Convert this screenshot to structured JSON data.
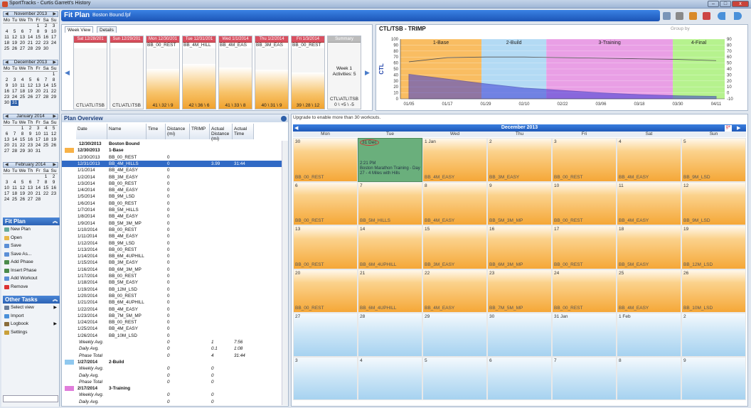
{
  "window": {
    "title": "SportTracks - Curtis Garrett's History",
    "min": "–",
    "max": "□",
    "close": "x"
  },
  "calendars": [
    {
      "month": "November 2013",
      "days": [
        "Mo",
        "Tu",
        "We",
        "Th",
        "Fr",
        "Sa",
        "Su"
      ],
      "dates": [
        "",
        "",
        "",
        "",
        "1",
        "2",
        "3",
        "4",
        "5",
        "6",
        "7",
        "8",
        "9",
        "10",
        "11",
        "12",
        "13",
        "14",
        "15",
        "16",
        "17",
        "18",
        "19",
        "20",
        "21",
        "22",
        "23",
        "24",
        "25",
        "26",
        "27",
        "28",
        "29",
        "30",
        ""
      ]
    },
    {
      "month": "December 2013",
      "days": [
        "Mo",
        "Tu",
        "We",
        "Th",
        "Fr",
        "Sa",
        "Su"
      ],
      "dates": [
        "",
        "",
        "",
        "",
        "",
        "",
        "1",
        "2",
        "3",
        "4",
        "5",
        "6",
        "7",
        "8",
        "9",
        "10",
        "11",
        "12",
        "13",
        "14",
        "15",
        "16",
        "17",
        "18",
        "19",
        "20",
        "21",
        "22",
        "23",
        "24",
        "25",
        "26",
        "27",
        "28",
        "29",
        "30",
        "31"
      ]
    },
    {
      "month": "January 2014",
      "days": [
        "Mo",
        "Tu",
        "We",
        "Th",
        "Fr",
        "Sa",
        "Su"
      ],
      "dates": [
        "",
        "",
        "1",
        "2",
        "3",
        "4",
        "5",
        "6",
        "7",
        "8",
        "9",
        "10",
        "11",
        "12",
        "13",
        "14",
        "15",
        "16",
        "17",
        "18",
        "19",
        "20",
        "21",
        "22",
        "23",
        "24",
        "25",
        "26",
        "27",
        "28",
        "29",
        "30",
        "31",
        "",
        ""
      ]
    },
    {
      "month": "February 2014",
      "days": [
        "Mo",
        "Tu",
        "We",
        "Th",
        "Fr",
        "Sa",
        "Su"
      ],
      "dates": [
        "",
        "",
        "",
        "",
        "",
        "1",
        "2",
        "3",
        "4",
        "5",
        "6",
        "7",
        "8",
        "9",
        "10",
        "11",
        "12",
        "13",
        "14",
        "15",
        "16",
        "17",
        "18",
        "19",
        "20",
        "21",
        "22",
        "23",
        "24",
        "25",
        "26",
        "27",
        "28",
        "",
        ""
      ]
    }
  ],
  "fitplan_tasks": {
    "title": "Fit Plan",
    "items": [
      "New Plan",
      "Open",
      "Save",
      "Save As...",
      "Add Phase",
      "Insert Phase",
      "Add Workout",
      "Remove"
    ]
  },
  "other_tasks": {
    "title": "Other Tasks",
    "items": [
      "Select view",
      "Import",
      "Logbook",
      "Settings"
    ]
  },
  "header": {
    "title": "Fit Plan",
    "file": "Boston Bound.fpf",
    "groupby": "Group by"
  },
  "weekview": {
    "tabs": [
      "Week View",
      "Details"
    ],
    "days": [
      {
        "header": "Sat 12/28/201",
        "workout": "",
        "load": "CTL\\ATL\\TSB",
        "fill": 0
      },
      {
        "header": "Sun 12/29/201",
        "workout": "",
        "load": "CTL\\ATL\\TSB",
        "fill": 0
      },
      {
        "header": "Mon 12/30/201",
        "workout": "BB_00_REST",
        "load": "41 \\ 32 \\ 9",
        "fill": 0.55
      },
      {
        "header": "Tue 12/31/201",
        "workout": "BB_4M_HILL",
        "load": "42 \\ 36 \\ 6",
        "fill": 0.62
      },
      {
        "header": "Wed 1/1/2014",
        "workout": "BB_4M_EAS",
        "load": "41 \\ 33 \\ 8",
        "fill": 0.57
      },
      {
        "header": "Thu 1/2/2014",
        "workout": "BB_3M_EAS",
        "load": "40 \\ 31 \\ 9",
        "fill": 0.54
      },
      {
        "header": "Fri 1/3/2014",
        "workout": "BB_00_REST",
        "load": "39 \\ 28 \\ 12",
        "fill": 0.5
      }
    ],
    "summary": {
      "header": "Summary",
      "week": "Week 1",
      "activities": "Activities: 5",
      "load": "CTL\\ATL\\TSB",
      "values": "0 \\ +5 \\ -5"
    }
  },
  "ctl_chart": {
    "title": "CTL/TSB - TRIMP"
  },
  "chart_data": {
    "type": "area",
    "title": "CTL/TSB - TRIMP",
    "ylabel": "CTL",
    "x": [
      "01/05",
      "01/17",
      "01/29",
      "02/10",
      "02/22",
      "03/06",
      "03/18",
      "03/30",
      "04/11"
    ],
    "ylim": [
      0,
      100
    ],
    "yticks": [
      0,
      10,
      20,
      30,
      40,
      50,
      60,
      70,
      80,
      90,
      100
    ],
    "y2ticks": [
      -10,
      0,
      10,
      20,
      30,
      40,
      50,
      60,
      70,
      80,
      90
    ],
    "phases": [
      {
        "name": "1-Base",
        "color": "#f8b247"
      },
      {
        "name": "2-Build",
        "color": "#a6d4f2"
      },
      {
        "name": "3-Training",
        "color": "#e58ee0"
      },
      {
        "name": "4-Final",
        "color": "#a9f07a"
      }
    ],
    "series": [
      {
        "name": "CTL",
        "values": [
          41,
          33,
          25,
          18,
          14,
          10,
          7,
          5,
          4
        ]
      },
      {
        "name": "TSB",
        "values": [
          62,
          69,
          70,
          70,
          69,
          68,
          67,
          66,
          64
        ]
      }
    ]
  },
  "overview": {
    "title": "Plan Overview",
    "columns": [
      "Date",
      "Name",
      "Time",
      "Distance (mi)",
      "TRIMP",
      "Actual Distance (mi)",
      "Actual Time"
    ],
    "plan_row": {
      "date": "12/30/2013",
      "name": "Boston Bound"
    },
    "rows": [
      {
        "d": "12/30/2013",
        "n": "1-Base",
        "t": "",
        "dist": "",
        "tr": "",
        "ad": "",
        "at": "",
        "cls": "ph",
        "sw": "#f8b247"
      },
      {
        "d": "12/30/2013",
        "n": "BB_00_REST",
        "t": "",
        "dist": "0",
        "tr": "",
        "ad": "",
        "at": "",
        "cls": ""
      },
      {
        "d": "12/31/2013",
        "n": "BB_4M_HILLS",
        "t": "",
        "dist": "0",
        "tr": "",
        "ad": "3.99",
        "at": "31:44",
        "cls": "sel"
      },
      {
        "d": "1/1/2014",
        "n": "BB_4M_EASY",
        "t": "",
        "dist": "0",
        "tr": "",
        "ad": "",
        "at": "",
        "cls": ""
      },
      {
        "d": "1/2/2014",
        "n": "BB_3M_EASY",
        "t": "",
        "dist": "0",
        "tr": "",
        "ad": "",
        "at": "",
        "cls": ""
      },
      {
        "d": "1/3/2014",
        "n": "BB_00_REST",
        "t": "",
        "dist": "0",
        "tr": "",
        "ad": "",
        "at": "",
        "cls": ""
      },
      {
        "d": "1/4/2014",
        "n": "BB_4M_EASY",
        "t": "",
        "dist": "0",
        "tr": "",
        "ad": "",
        "at": "",
        "cls": ""
      },
      {
        "d": "1/5/2014",
        "n": "BB_9M_LSD",
        "t": "",
        "dist": "0",
        "tr": "",
        "ad": "",
        "at": "",
        "cls": ""
      },
      {
        "d": "1/6/2014",
        "n": "BB_00_REST",
        "t": "",
        "dist": "0",
        "tr": "",
        "ad": "",
        "at": "",
        "cls": ""
      },
      {
        "d": "1/7/2014",
        "n": "BB_5M_HILLS",
        "t": "",
        "dist": "0",
        "tr": "",
        "ad": "",
        "at": "",
        "cls": ""
      },
      {
        "d": "1/8/2014",
        "n": "BB_4M_EASY",
        "t": "",
        "dist": "0",
        "tr": "",
        "ad": "",
        "at": "",
        "cls": ""
      },
      {
        "d": "1/9/2014",
        "n": "BB_5M_3M_MP",
        "t": "",
        "dist": "0",
        "tr": "",
        "ad": "",
        "at": "",
        "cls": ""
      },
      {
        "d": "1/10/2014",
        "n": "BB_00_REST",
        "t": "",
        "dist": "0",
        "tr": "",
        "ad": "",
        "at": "",
        "cls": ""
      },
      {
        "d": "1/11/2014",
        "n": "BB_4M_EASY",
        "t": "",
        "dist": "0",
        "tr": "",
        "ad": "",
        "at": "",
        "cls": ""
      },
      {
        "d": "1/12/2014",
        "n": "BB_9M_LSD",
        "t": "",
        "dist": "0",
        "tr": "",
        "ad": "",
        "at": "",
        "cls": ""
      },
      {
        "d": "1/13/2014",
        "n": "BB_00_REST",
        "t": "",
        "dist": "0",
        "tr": "",
        "ad": "",
        "at": "",
        "cls": ""
      },
      {
        "d": "1/14/2014",
        "n": "BB_6M_4UPHILL",
        "t": "",
        "dist": "0",
        "tr": "",
        "ad": "",
        "at": "",
        "cls": ""
      },
      {
        "d": "1/15/2014",
        "n": "BB_3M_EASY",
        "t": "",
        "dist": "0",
        "tr": "",
        "ad": "",
        "at": "",
        "cls": ""
      },
      {
        "d": "1/16/2014",
        "n": "BB_6M_3M_MP",
        "t": "",
        "dist": "0",
        "tr": "",
        "ad": "",
        "at": "",
        "cls": ""
      },
      {
        "d": "1/17/2014",
        "n": "BB_00_REST",
        "t": "",
        "dist": "0",
        "tr": "",
        "ad": "",
        "at": "",
        "cls": ""
      },
      {
        "d": "1/18/2014",
        "n": "BB_5M_EASY",
        "t": "",
        "dist": "0",
        "tr": "",
        "ad": "",
        "at": "",
        "cls": ""
      },
      {
        "d": "1/19/2014",
        "n": "BB_12M_LSD",
        "t": "",
        "dist": "0",
        "tr": "",
        "ad": "",
        "at": "",
        "cls": ""
      },
      {
        "d": "1/20/2014",
        "n": "BB_00_REST",
        "t": "",
        "dist": "0",
        "tr": "",
        "ad": "",
        "at": "",
        "cls": ""
      },
      {
        "d": "1/21/2014",
        "n": "BB_6M_4UPHILL",
        "t": "",
        "dist": "0",
        "tr": "",
        "ad": "",
        "at": "",
        "cls": ""
      },
      {
        "d": "1/22/2014",
        "n": "BB_4M_EASY",
        "t": "",
        "dist": "0",
        "tr": "",
        "ad": "",
        "at": "",
        "cls": ""
      },
      {
        "d": "1/23/2014",
        "n": "BB_7M_5M_MP",
        "t": "",
        "dist": "0",
        "tr": "",
        "ad": "",
        "at": "",
        "cls": ""
      },
      {
        "d": "1/24/2014",
        "n": "BB_00_REST",
        "t": "",
        "dist": "0",
        "tr": "",
        "ad": "",
        "at": "",
        "cls": ""
      },
      {
        "d": "1/25/2014",
        "n": "BB_4M_EASY",
        "t": "",
        "dist": "0",
        "tr": "",
        "ad": "",
        "at": "",
        "cls": ""
      },
      {
        "d": "1/26/2014",
        "n": "BB_10M_LSD",
        "t": "",
        "dist": "0",
        "tr": "",
        "ad": "",
        "at": "",
        "cls": ""
      },
      {
        "d": "Weekly Avg.",
        "n": "",
        "t": "",
        "dist": "0",
        "tr": "",
        "ad": "1",
        "at": "7:56",
        "cls": "it"
      },
      {
        "d": "Daily Avg.",
        "n": "",
        "t": "",
        "dist": "0",
        "tr": "",
        "ad": "0.1",
        "at": "1:08",
        "cls": "it"
      },
      {
        "d": "Phase Total",
        "n": "",
        "t": "",
        "dist": "0",
        "tr": "",
        "ad": "4",
        "at": "31:44",
        "cls": "it"
      },
      {
        "d": "1/27/2014",
        "n": "2-Build",
        "t": "",
        "dist": "",
        "tr": "",
        "ad": "",
        "at": "",
        "cls": "ph",
        "sw": "#8fc8ef"
      },
      {
        "d": "Weekly Avg.",
        "n": "",
        "t": "",
        "dist": "0",
        "tr": "",
        "ad": "0",
        "at": "",
        "cls": "it"
      },
      {
        "d": "Daily Avg.",
        "n": "",
        "t": "",
        "dist": "0",
        "tr": "",
        "ad": "0",
        "at": "",
        "cls": "it"
      },
      {
        "d": "Phase Total",
        "n": "",
        "t": "",
        "dist": "0",
        "tr": "",
        "ad": "0",
        "at": "",
        "cls": "it"
      },
      {
        "d": "2/17/2014",
        "n": "3-Training",
        "t": "",
        "dist": "",
        "tr": "",
        "ad": "",
        "at": "",
        "cls": "ph",
        "sw": "#e07ddb"
      },
      {
        "d": "Weekly Avg.",
        "n": "",
        "t": "",
        "dist": "0",
        "tr": "",
        "ad": "0",
        "at": "",
        "cls": "it"
      },
      {
        "d": "Daily Avg.",
        "n": "",
        "t": "",
        "dist": "0",
        "tr": "",
        "ad": "0",
        "at": "",
        "cls": "it"
      }
    ]
  },
  "calendar": {
    "upgrade": "Upgrade to enable more than 30 workouts.",
    "month": "December 2013",
    "daynames": [
      "Mon",
      "Tue",
      "Wed",
      "Thu",
      "Fri",
      "Sat",
      "Sun"
    ],
    "event": {
      "time": "2:21 PM",
      "title": "Boston Marathon Training - Day 27 - 4 Miles with Hills"
    },
    "cells": [
      [
        "30",
        "BB_00_REST",
        "or"
      ],
      [
        "31 Dec",
        "",
        "gr"
      ],
      [
        "1 Jan",
        "BB_4M_EASY",
        "or"
      ],
      [
        "2",
        "BB_3M_EASY",
        "or"
      ],
      [
        "3",
        "BB_00_REST",
        "or"
      ],
      [
        "4",
        "BB_4M_EASY",
        "or"
      ],
      [
        "5",
        "BB_9M_LSD",
        "or"
      ],
      [
        "6",
        "BB_00_REST",
        "or"
      ],
      [
        "7",
        "BB_5M_HILLS",
        "or"
      ],
      [
        "8",
        "BB_4M_EASY",
        "or"
      ],
      [
        "9",
        "BB_5M_3M_MP",
        "or"
      ],
      [
        "10",
        "BB_00_REST",
        "or"
      ],
      [
        "11",
        "BB_4M_EASY",
        "or"
      ],
      [
        "12",
        "BB_9M_LSD",
        "or"
      ],
      [
        "13",
        "BB_00_REST",
        "or"
      ],
      [
        "14",
        "BB_6M_4UPHILL",
        "or"
      ],
      [
        "15",
        "BB_3M_EASY",
        "or"
      ],
      [
        "16",
        "BB_6M_3M_MP",
        "or"
      ],
      [
        "17",
        "BB_00_REST",
        "or"
      ],
      [
        "18",
        "BB_5M_EASY",
        "or"
      ],
      [
        "19",
        "BB_12M_LSD",
        "or"
      ],
      [
        "20",
        "BB_00_REST",
        "or"
      ],
      [
        "21",
        "BB_6M_4UPHILL",
        "or"
      ],
      [
        "22",
        "BB_4M_EASY",
        "or"
      ],
      [
        "23",
        "BB_7M_5M_MP",
        "or"
      ],
      [
        "24",
        "BB_00_REST",
        "or"
      ],
      [
        "25",
        "BB_4M_EASY",
        "or"
      ],
      [
        "26",
        "BB_10M_LSD",
        "or"
      ],
      [
        "27",
        "",
        "bl"
      ],
      [
        "28",
        "",
        "bl"
      ],
      [
        "29",
        "",
        "bl"
      ],
      [
        "30",
        "",
        "bl"
      ],
      [
        "31 Jan",
        "",
        "bl"
      ],
      [
        "1 Feb",
        "",
        "bl"
      ],
      [
        "2",
        "",
        "bl"
      ],
      [
        "3",
        "",
        "bl"
      ],
      [
        "4",
        "",
        "bl"
      ],
      [
        "5",
        "",
        "bl"
      ],
      [
        "6",
        "",
        "bl"
      ],
      [
        "7",
        "",
        "bl"
      ],
      [
        "8",
        "",
        "bl"
      ],
      [
        "9",
        "",
        "bl"
      ]
    ]
  }
}
